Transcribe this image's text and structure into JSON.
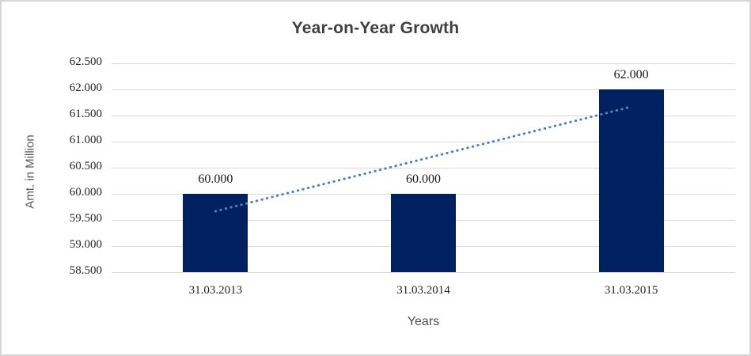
{
  "window": {
    "background": "#ffffff",
    "border_color": "#d6d6d6"
  },
  "chart_data": {
    "type": "bar",
    "title": "Year-on-Year Growth",
    "xlabel": "Years",
    "ylabel": "Amt. in Million",
    "categories": [
      "31.03.2013",
      "31.03.2014",
      "31.03.2015"
    ],
    "values": [
      60.0,
      60.0,
      62.0
    ],
    "data_labels": [
      "60.000",
      "60.000",
      "62.000"
    ],
    "ylim": [
      58.5,
      62.5
    ],
    "ytick_step": 0.5,
    "ytick_labels": [
      "58.500",
      "59.000",
      "59.500",
      "60.000",
      "60.500",
      "61.000",
      "61.500",
      "62.000",
      "62.500"
    ],
    "grid": true,
    "legend": "none",
    "bar_color": "#002060",
    "gridline_color": "#d9d9d9",
    "tick_label_color": "#262626",
    "title_color": "#404040",
    "axis_title_color": "#595959",
    "trendline": {
      "type": "linear",
      "style": "dotted",
      "color": "#4f81bd",
      "start_value": 59.667,
      "end_value": 61.667
    }
  }
}
